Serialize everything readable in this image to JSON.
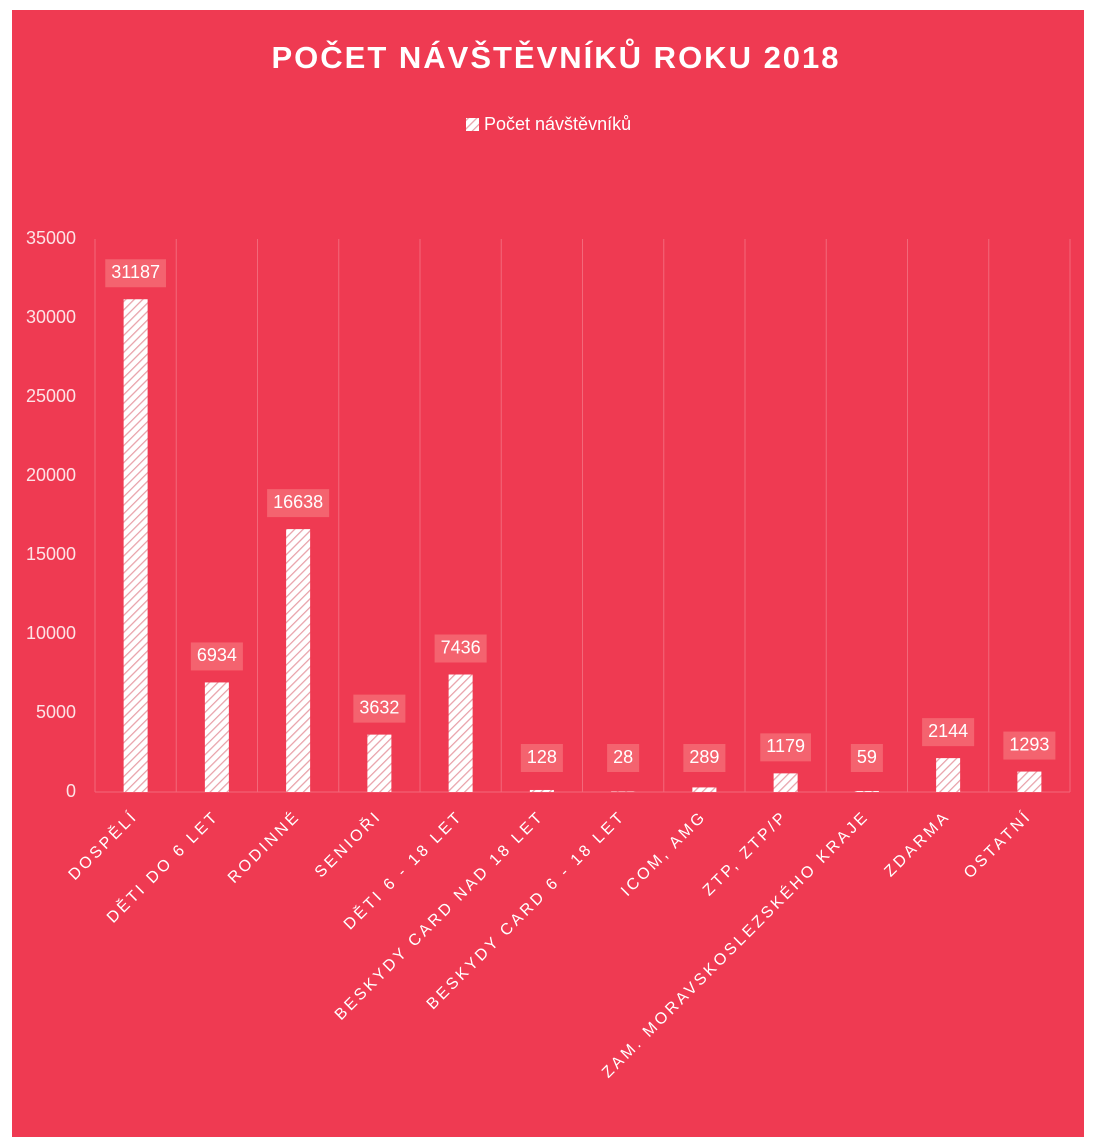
{
  "chart_data": {
    "type": "bar",
    "title": "POČET NÁVŠTĚVNÍKŮ ROKU 2018",
    "categories": [
      "DOSPĚLÍ",
      "DĚTI DO 6 LET",
      "RODINNÉ",
      "SENIOŘI",
      "DĚTI 6 - 18 LET",
      "BESKYDY CARD NAD 18 LET",
      "BESKYDY CARD 6 - 18 LET",
      "ICOM, AMG",
      "ZTP, ZTP/P",
      "ZAM. MORAVSKOSLEZSKÉHO KRAJE",
      "ZDARMA",
      "OSTATNÍ"
    ],
    "series": [
      {
        "name": "Počet návštěvníků",
        "color": "#ffffff",
        "values": [
          31187,
          6934,
          16638,
          3632,
          7436,
          128,
          28,
          289,
          1179,
          59,
          2144,
          1293
        ]
      }
    ],
    "ylim": [
      0,
      35000
    ],
    "yticks": [
      0,
      5000,
      10000,
      15000,
      20000,
      25000,
      30000,
      35000
    ],
    "grid": false,
    "legend": "top"
  }
}
